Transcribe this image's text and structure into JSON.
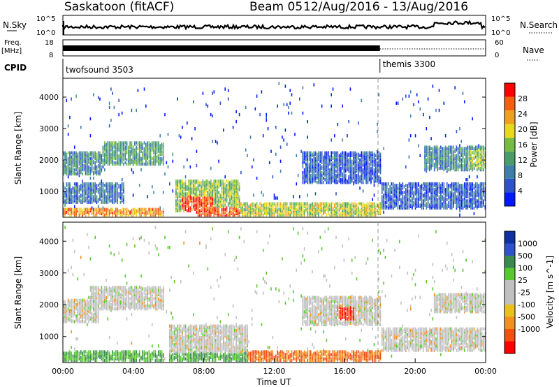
{
  "header": {
    "station": "Saskatoon (fitACF)",
    "beam": "Beam 05",
    "date_range": "12/Aug/2016 - 13/Aug/2016"
  },
  "strip_labels": {
    "nsky": "N.Sky",
    "nsky_hi": "10^5",
    "nsky_lo": "10^0",
    "nsearch": "N.Search",
    "nsearch_hi": "10^5",
    "nsearch_lo": "10^0",
    "freq": "Freq.",
    "freq_unit": "[MHz]",
    "freq_hi": "18",
    "freq_lo": "8",
    "nave": "Nave",
    "nave_hi": "60",
    "nave_lo": "0",
    "cpid": "CPID"
  },
  "cpid_modes": [
    {
      "name": "twofsound 3503",
      "start_hour": 0
    },
    {
      "name": "themis 3300",
      "start_hour": 18
    }
  ],
  "colors": {
    "power": [
      "#0018ff",
      "#2f52c8",
      "#3d7fa6",
      "#4a9c6a",
      "#78bb44",
      "#e8d820",
      "#f0a020",
      "#f06010",
      "#ff0000"
    ],
    "velocity": [
      "#ff0000",
      "#f05010",
      "#f09020",
      "#e8c020",
      "#c0c0c0",
      "#c0c0c0",
      "#58c830",
      "#3a8a50",
      "#2f52c8",
      "#1030a0"
    ]
  },
  "chart_data": [
    {
      "type": "heatmap",
      "panel": "power",
      "xlabel": "",
      "ylabel": "Slant Range [km]",
      "xlim": [
        0,
        24
      ],
      "ylim": [
        180,
        4600
      ],
      "yticks": [
        "1000",
        "2000",
        "3000",
        "4000"
      ],
      "colorbar_label": "Power [dB]",
      "colorbar_ticks": [
        "4",
        "8",
        "12",
        "16",
        "20",
        "24",
        "28"
      ],
      "colorbar_range": [
        0,
        32
      ],
      "regions": [
        {
          "x0": 0,
          "x1": 5.7,
          "y0": 180,
          "y1": 400,
          "value": 24
        },
        {
          "x0": 0,
          "x1": 3.5,
          "y0": 600,
          "y1": 1200,
          "value": 8
        },
        {
          "x0": 0,
          "x1": 2.2,
          "y0": 1500,
          "y1": 2200,
          "value": 10
        },
        {
          "x0": 2.2,
          "x1": 5.7,
          "y0": 1800,
          "y1": 2500,
          "value": 12
        },
        {
          "x0": 6.3,
          "x1": 10.0,
          "y0": 300,
          "y1": 1300,
          "value": 16
        },
        {
          "x0": 6.7,
          "x1": 8.5,
          "y0": 300,
          "y1": 800,
          "value": 28
        },
        {
          "x0": 7.5,
          "x1": 10.0,
          "y0": 180,
          "y1": 450,
          "value": 28
        },
        {
          "x0": 10.0,
          "x1": 18.0,
          "y0": 180,
          "y1": 600,
          "value": 18
        },
        {
          "x0": 13.5,
          "x1": 18.0,
          "y0": 1200,
          "y1": 2200,
          "value": 6
        },
        {
          "x0": 18.0,
          "x1": 24.0,
          "y0": 400,
          "y1": 1200,
          "value": 6
        },
        {
          "x0": 20.5,
          "x1": 24.0,
          "y0": 1600,
          "y1": 2400,
          "value": 10
        },
        {
          "x0": 23.0,
          "x1": 24.0,
          "y0": 1700,
          "y1": 2300,
          "value": 16
        }
      ]
    },
    {
      "type": "heatmap",
      "panel": "velocity",
      "xlabel": "Time UT",
      "ylabel": "Slant Range [km]",
      "xlim": [
        0,
        24
      ],
      "ylim": [
        180,
        4600
      ],
      "xticks": [
        "00:00",
        "04:00",
        "08:00",
        "12:00",
        "16:00",
        "20:00",
        "00:00"
      ],
      "yticks": [
        "1000",
        "2000",
        "3000",
        "4000"
      ],
      "colorbar_label": "Velocity [m s^-1]",
      "colorbar_ticks": [
        "1000",
        "500",
        "100",
        "25",
        "-25",
        "-100",
        "-500",
        "-1000"
      ],
      "regions": [
        {
          "x0": 0,
          "x1": 5.7,
          "y0": 180,
          "y1": 500,
          "value": 100
        },
        {
          "x0": 1.5,
          "x1": 5.7,
          "y0": 1800,
          "y1": 2500,
          "value": 0
        },
        {
          "x0": 0,
          "x1": 2.0,
          "y0": 1400,
          "y1": 2100,
          "value": 0
        },
        {
          "x0": 6.0,
          "x1": 10.5,
          "y0": 400,
          "y1": 1300,
          "value": 0
        },
        {
          "x0": 6.0,
          "x1": 10.5,
          "y0": 180,
          "y1": 450,
          "value": 100
        },
        {
          "x0": 10.5,
          "x1": 18.0,
          "y0": 180,
          "y1": 500,
          "value": -100
        },
        {
          "x0": 13.5,
          "x1": 18.0,
          "y0": 1300,
          "y1": 2200,
          "value": 0
        },
        {
          "x0": 15.5,
          "x1": 16.5,
          "y0": 1500,
          "y1": 1900,
          "value": -500
        },
        {
          "x0": 18.0,
          "x1": 24.0,
          "y0": 500,
          "y1": 1200,
          "value": 0
        },
        {
          "x0": 21.0,
          "x1": 24.0,
          "y0": 1700,
          "y1": 2300,
          "value": 0
        }
      ]
    }
  ]
}
